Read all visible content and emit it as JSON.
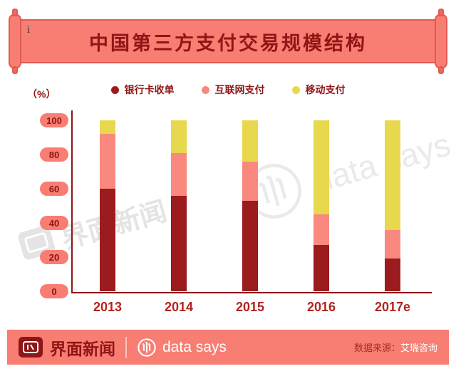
{
  "header": {
    "title": "中国第三方支付交易规模结构",
    "decor_mark": "i"
  },
  "chart_data": {
    "type": "bar",
    "stacked": true,
    "title": "中国第三方支付交易规模结构",
    "unit_label": "（%）",
    "categories": [
      "2013",
      "2014",
      "2015",
      "2016",
      "2017e"
    ],
    "series": [
      {
        "name": "银行卡收单",
        "color": "#9b1b1e",
        "values": [
          60,
          56,
          53,
          27,
          19
        ]
      },
      {
        "name": "互联网支付",
        "color": "#f9897f",
        "values": [
          32,
          25,
          23,
          18,
          17
        ]
      },
      {
        "name": "移动支付",
        "color": "#e7d84d",
        "values": [
          8,
          19,
          24,
          55,
          64
        ]
      }
    ],
    "y_ticks": [
      100,
      80,
      60,
      40,
      20,
      0
    ],
    "ylim": [
      0,
      100
    ],
    "grid": false,
    "legend_position": "top"
  },
  "watermarks": {
    "datasays_text": "data says",
    "jiemian_text": "界面新闻"
  },
  "footer": {
    "brand": "界面新闻",
    "datasays": "data says",
    "source_label": "数据来源：",
    "source_value": "艾瑞咨询"
  }
}
